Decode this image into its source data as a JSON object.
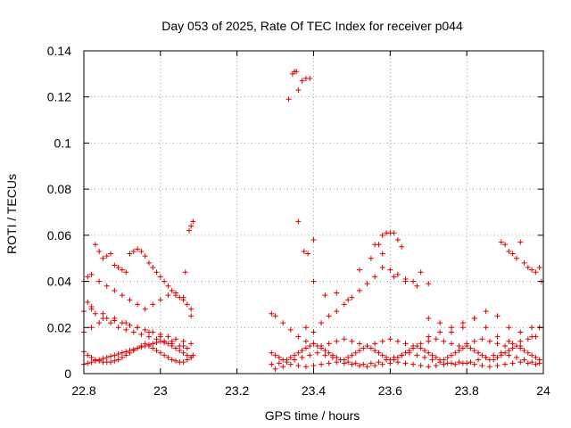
{
  "chart_data": {
    "type": "scatter",
    "title": "Day 053 of 2025, Rate Of TEC Index for receiver p044",
    "xlabel": "GPS time / hours",
    "ylabel": "ROTI / TECUs",
    "xlim": [
      22.8,
      24.0
    ],
    "ylim": [
      0,
      0.14
    ],
    "xticks": [
      22.8,
      23.0,
      23.2,
      23.4,
      23.6,
      23.8,
      24.0
    ],
    "xtick_labels": [
      "22.8",
      "23",
      "23.2",
      "23.4",
      "23.6",
      "23.8",
      "24"
    ],
    "yticks": [
      0,
      0.02,
      0.04,
      0.06,
      0.08,
      0.1,
      0.12,
      0.14
    ],
    "ytick_labels": [
      "0",
      "0.02",
      "0.04",
      "0.06",
      "0.08",
      "0.1",
      "0.12",
      "0.14"
    ],
    "grid": true,
    "marker": "+",
    "color": "#dd0000",
    "series": [
      {
        "name": "ROTI",
        "x": [
          22.8,
          22.81,
          22.82,
          22.83,
          22.84,
          22.85,
          22.86,
          22.87,
          22.88,
          22.89,
          22.9,
          22.91,
          22.92,
          22.93,
          22.94,
          22.95,
          22.96,
          22.97,
          22.98,
          22.99,
          23.0,
          23.01,
          23.02,
          23.03,
          23.04,
          23.05,
          23.06,
          23.07,
          23.08,
          23.085,
          22.8,
          22.81,
          22.82,
          22.83,
          22.84,
          22.85,
          22.86,
          22.87,
          22.88,
          22.89,
          22.9,
          22.91,
          22.92,
          22.93,
          22.94,
          22.95,
          22.96,
          22.97,
          22.98,
          22.99,
          23.0,
          23.01,
          23.02,
          23.03,
          23.04,
          23.05,
          23.06,
          23.07,
          23.08,
          22.8,
          22.82,
          22.84,
          22.86,
          22.88,
          22.9,
          22.92,
          22.94,
          22.96,
          22.98,
          23.0,
          23.02,
          23.04,
          23.06,
          23.08,
          22.8,
          22.81,
          22.82,
          22.83,
          22.85,
          22.87,
          22.89,
          22.91,
          22.93,
          22.95,
          22.97,
          22.99,
          23.01,
          23.03,
          23.05,
          23.07,
          22.83,
          22.84,
          22.85,
          22.86,
          22.87,
          22.88,
          22.89,
          22.9,
          22.91,
          22.92,
          22.93,
          22.94,
          22.95,
          22.96,
          22.97,
          22.98,
          22.99,
          23.0,
          23.01,
          23.02,
          23.03,
          23.04,
          23.05,
          23.06,
          23.07,
          23.08,
          22.8,
          22.81,
          22.82,
          22.84,
          22.86,
          22.88,
          22.9,
          22.92,
          22.94,
          22.96,
          22.98,
          23.0,
          23.02,
          23.04,
          23.06,
          23.08,
          22.82,
          22.85,
          22.88,
          22.91,
          22.94,
          22.97,
          23.0,
          23.03,
          23.06,
          23.065,
          23.075,
          23.08,
          23.085,
          23.29,
          23.3,
          23.31,
          23.32,
          23.33,
          23.34,
          23.35,
          23.36,
          23.37,
          23.38,
          23.39,
          23.4,
          23.41,
          23.42,
          23.43,
          23.44,
          23.45,
          23.46,
          23.47,
          23.48,
          23.49,
          23.5,
          23.51,
          23.52,
          23.53,
          23.54,
          23.55,
          23.56,
          23.57,
          23.58,
          23.59,
          23.6,
          23.61,
          23.62,
          23.63,
          23.64,
          23.65,
          23.66,
          23.67,
          23.68,
          23.69,
          23.7,
          23.71,
          23.72,
          23.73,
          23.74,
          23.75,
          23.76,
          23.77,
          23.78,
          23.79,
          23.8,
          23.81,
          23.82,
          23.83,
          23.84,
          23.85,
          23.86,
          23.87,
          23.88,
          23.89,
          23.9,
          23.91,
          23.92,
          23.93,
          23.94,
          23.95,
          23.96,
          23.97,
          23.98,
          23.99,
          23.29,
          23.31,
          23.33,
          23.35,
          23.37,
          23.39,
          23.41,
          23.43,
          23.45,
          23.47,
          23.49,
          23.51,
          23.53,
          23.55,
          23.57,
          23.59,
          23.61,
          23.63,
          23.65,
          23.67,
          23.69,
          23.71,
          23.73,
          23.75,
          23.77,
          23.79,
          23.81,
          23.83,
          23.85,
          23.87,
          23.89,
          23.91,
          23.93,
          23.95,
          23.97,
          23.99,
          23.29,
          23.3,
          23.32,
          23.34,
          23.36,
          23.38,
          23.4,
          23.42,
          23.44,
          23.46,
          23.48,
          23.5,
          23.52,
          23.54,
          23.56,
          23.58,
          23.6,
          23.62,
          23.64,
          23.66,
          23.68,
          23.7,
          23.72,
          23.74,
          23.76,
          23.78,
          23.8,
          23.82,
          23.84,
          23.86,
          23.88,
          23.9,
          23.92,
          23.94,
          23.96,
          23.98,
          23.3,
          23.32,
          23.34,
          23.36,
          23.38,
          23.4,
          23.42,
          23.44,
          23.46,
          23.48,
          23.5,
          23.52,
          23.54,
          23.56,
          23.58,
          23.6,
          23.62,
          23.64,
          23.66,
          23.68,
          23.7,
          23.72,
          23.74,
          23.76,
          23.78,
          23.8,
          23.82,
          23.84,
          23.86,
          23.88,
          23.9,
          23.92,
          23.94,
          23.96,
          23.98,
          23.335,
          23.345,
          23.35,
          23.355,
          23.36,
          23.37,
          23.38,
          23.39,
          23.36,
          23.375,
          23.385,
          23.4,
          23.4,
          23.42,
          23.44,
          23.46,
          23.48,
          23.5,
          23.52,
          23.54,
          23.56,
          23.58,
          23.6,
          23.62,
          23.64,
          23.66,
          23.68,
          23.7,
          23.56,
          23.57,
          23.58,
          23.59,
          23.6,
          23.61,
          23.62,
          23.63,
          23.38,
          23.4,
          23.43,
          23.46,
          23.49,
          23.52,
          23.55,
          23.58,
          23.61,
          23.64,
          23.67,
          23.7,
          23.73,
          23.76,
          23.79,
          23.82,
          23.85,
          23.88,
          23.91,
          23.94,
          23.97,
          23.89,
          23.9,
          23.91,
          23.92,
          23.93,
          23.94,
          23.95,
          23.96,
          23.97,
          23.98,
          23.99,
          23.995,
          23.7,
          23.73,
          23.76,
          23.79,
          23.82,
          23.85,
          23.88,
          23.91,
          23.94,
          23.97,
          23.99
        ],
        "y": [
          0.0095,
          0.008,
          0.007,
          0.006,
          0.0055,
          0.005,
          0.005,
          0.005,
          0.0055,
          0.006,
          0.007,
          0.008,
          0.009,
          0.01,
          0.011,
          0.012,
          0.013,
          0.012,
          0.011,
          0.01,
          0.009,
          0.008,
          0.007,
          0.006,
          0.0055,
          0.005,
          0.005,
          0.006,
          0.007,
          0.008,
          0.004,
          0.0045,
          0.005,
          0.0055,
          0.006,
          0.0065,
          0.007,
          0.0075,
          0.008,
          0.0085,
          0.009,
          0.0095,
          0.01,
          0.0105,
          0.011,
          0.0115,
          0.012,
          0.0125,
          0.013,
          0.0135,
          0.014,
          0.0135,
          0.013,
          0.012,
          0.011,
          0.01,
          0.009,
          0.008,
          0.007,
          0.018,
          0.02,
          0.022,
          0.024,
          0.023,
          0.022,
          0.021,
          0.02,
          0.019,
          0.018,
          0.017,
          0.016,
          0.015,
          0.014,
          0.013,
          0.027,
          0.031,
          0.029,
          0.026,
          0.024,
          0.022,
          0.02,
          0.019,
          0.018,
          0.017,
          0.016,
          0.015,
          0.014,
          0.013,
          0.012,
          0.011,
          0.056,
          0.053,
          0.05,
          0.051,
          0.052,
          0.047,
          0.046,
          0.045,
          0.044,
          0.052,
          0.053,
          0.054,
          0.053,
          0.051,
          0.048,
          0.046,
          0.044,
          0.042,
          0.04,
          0.038,
          0.036,
          0.034,
          0.033,
          0.032,
          0.03,
          0.028,
          0.04,
          0.042,
          0.043,
          0.04,
          0.038,
          0.036,
          0.034,
          0.032,
          0.03,
          0.028,
          0.03,
          0.032,
          0.034,
          0.035,
          0.033,
          0.025,
          0.028,
          0.026,
          0.024,
          0.022,
          0.02,
          0.018,
          0.016,
          0.014,
          0.012,
          0.044,
          0.062,
          0.064,
          0.066,
          0.009,
          0.008,
          0.007,
          0.006,
          0.006,
          0.007,
          0.008,
          0.009,
          0.01,
          0.011,
          0.012,
          0.013,
          0.012,
          0.011,
          0.01,
          0.009,
          0.008,
          0.007,
          0.006,
          0.006,
          0.007,
          0.008,
          0.009,
          0.01,
          0.011,
          0.012,
          0.011,
          0.01,
          0.009,
          0.008,
          0.007,
          0.006,
          0.006,
          0.007,
          0.008,
          0.009,
          0.01,
          0.011,
          0.012,
          0.011,
          0.01,
          0.009,
          0.008,
          0.007,
          0.006,
          0.006,
          0.007,
          0.008,
          0.009,
          0.01,
          0.011,
          0.012,
          0.011,
          0.01,
          0.009,
          0.008,
          0.007,
          0.006,
          0.006,
          0.007,
          0.008,
          0.009,
          0.01,
          0.011,
          0.012,
          0.011,
          0.01,
          0.009,
          0.008,
          0.007,
          0.006,
          0.004,
          0.0045,
          0.005,
          0.006,
          0.007,
          0.008,
          0.009,
          0.008,
          0.007,
          0.006,
          0.005,
          0.0045,
          0.004,
          0.0045,
          0.005,
          0.006,
          0.007,
          0.008,
          0.009,
          0.008,
          0.007,
          0.006,
          0.005,
          0.0045,
          0.004,
          0.0045,
          0.005,
          0.006,
          0.007,
          0.008,
          0.009,
          0.008,
          0.007,
          0.006,
          0.005,
          0.0045,
          0.026,
          0.025,
          0.022,
          0.019,
          0.016,
          0.014,
          0.013,
          0.012,
          0.013,
          0.014,
          0.015,
          0.014,
          0.013,
          0.012,
          0.013,
          0.014,
          0.015,
          0.014,
          0.013,
          0.012,
          0.013,
          0.014,
          0.015,
          0.014,
          0.013,
          0.012,
          0.013,
          0.014,
          0.015,
          0.014,
          0.013,
          0.012,
          0.013,
          0.014,
          0.015,
          0.016,
          0.002,
          0.003,
          0.004,
          0.0035,
          0.003,
          0.0035,
          0.004,
          0.0045,
          0.005,
          0.0045,
          0.004,
          0.0035,
          0.003,
          0.0035,
          0.004,
          0.0045,
          0.005,
          0.0045,
          0.004,
          0.0035,
          0.003,
          0.0035,
          0.004,
          0.0045,
          0.005,
          0.0045,
          0.004,
          0.0035,
          0.003,
          0.0035,
          0.004,
          0.0045,
          0.005,
          0.0045,
          0.004,
          0.119,
          0.13,
          0.131,
          0.131,
          0.123,
          0.127,
          0.128,
          0.128,
          0.066,
          0.053,
          0.052,
          0.058,
          0.018,
          0.022,
          0.025,
          0.027,
          0.03,
          0.033,
          0.036,
          0.039,
          0.042,
          0.046,
          0.045,
          0.043,
          0.041,
          0.04,
          0.044,
          0.039,
          0.056,
          0.056,
          0.06,
          0.061,
          0.061,
          0.061,
          0.058,
          0.055,
          0.02,
          0.04,
          0.034,
          0.035,
          0.032,
          0.045,
          0.05,
          0.052,
          0.042,
          0.04,
          0.038,
          0.024,
          0.022,
          0.018,
          0.02,
          0.024,
          0.027,
          0.025,
          0.02,
          0.018,
          0.02,
          0.057,
          0.056,
          0.053,
          0.052,
          0.05,
          0.057,
          0.048,
          0.046,
          0.045,
          0.044,
          0.046,
          0.04,
          0.016,
          0.018,
          0.02,
          0.022,
          0.024,
          0.02,
          0.016,
          0.014,
          0.012,
          0.016,
          0.02
        ]
      }
    ]
  }
}
